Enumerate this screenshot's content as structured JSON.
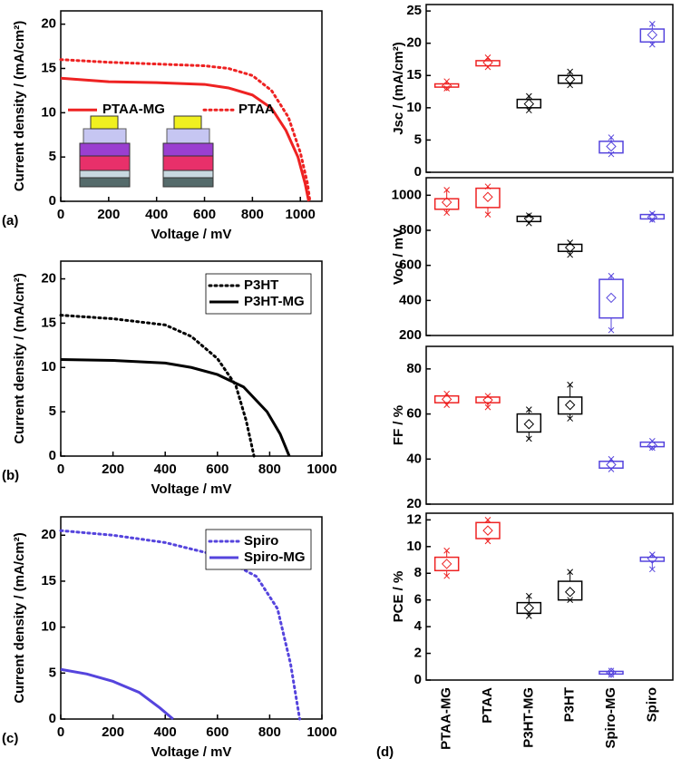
{
  "chart_data": [
    {
      "type": "line",
      "panel_label": "(a)",
      "xlabel": "Voltage / mV",
      "ylabel": "Current density / (mA/cm²)",
      "xlim": [
        0,
        1090
      ],
      "xticks": [
        0,
        200,
        400,
        600,
        800,
        1000
      ],
      "ylim": [
        0,
        21.5
      ],
      "yticks": [
        0,
        5,
        10,
        15,
        20
      ],
      "legend": "center left",
      "series": [
        {
          "name": "PTAA-MG",
          "color": "#ee2222",
          "style": "solid",
          "x": [
            0,
            200,
            400,
            600,
            700,
            800,
            880,
            940,
            990,
            1020,
            1035
          ],
          "values": [
            13.9,
            13.5,
            13.4,
            13.2,
            12.8,
            12.0,
            10.5,
            8,
            5,
            2,
            0
          ]
        },
        {
          "name": "PTAA",
          "color": "#ee2222",
          "style": "dotted",
          "x": [
            0,
            200,
            400,
            600,
            700,
            800,
            880,
            950,
            1000,
            1030,
            1040
          ],
          "values": [
            16.0,
            15.7,
            15.5,
            15.3,
            15.0,
            14.2,
            12.5,
            9.5,
            5.5,
            2,
            0
          ]
        }
      ]
    },
    {
      "type": "line",
      "panel_label": "(b)",
      "xlabel": "Voltage / mV",
      "ylabel": "Current density / (mA/cm²)",
      "xlim": [
        0,
        1000
      ],
      "xticks": [
        0,
        200,
        400,
        600,
        800,
        1000
      ],
      "ylim": [
        0,
        22
      ],
      "yticks": [
        0,
        5,
        10,
        15,
        20
      ],
      "legend": "upper right",
      "series": [
        {
          "name": "P3HT",
          "color": "#000000",
          "style": "dotted",
          "x": [
            0,
            200,
            400,
            500,
            600,
            670,
            710,
            740
          ],
          "values": [
            15.9,
            15.5,
            14.8,
            13.5,
            11,
            8,
            4,
            0
          ]
        },
        {
          "name": "P3HT-MG",
          "color": "#000000",
          "style": "solid",
          "x": [
            0,
            200,
            400,
            500,
            600,
            700,
            790,
            840,
            875
          ],
          "values": [
            10.9,
            10.8,
            10.5,
            10,
            9.2,
            7.8,
            5,
            2.5,
            0
          ]
        }
      ]
    },
    {
      "type": "line",
      "panel_label": "(c)",
      "xlabel": "Voltage / mV",
      "ylabel": "Current density / (mA/cm²)",
      "xlim": [
        0,
        1000
      ],
      "xticks": [
        0,
        200,
        400,
        600,
        800,
        1000
      ],
      "ylim": [
        0,
        22
      ],
      "yticks": [
        0,
        5,
        10,
        15,
        20
      ],
      "legend": "upper right",
      "series": [
        {
          "name": "Spiro",
          "color": "#5544dd",
          "style": "dotted",
          "x": [
            0,
            200,
            400,
            600,
            750,
            830,
            880,
            915
          ],
          "values": [
            20.5,
            20.0,
            19.2,
            17.8,
            15.5,
            12,
            6,
            0
          ]
        },
        {
          "name": "Spiro-MG",
          "color": "#5544dd",
          "style": "solid",
          "x": [
            0,
            100,
            200,
            300,
            380,
            430
          ],
          "values": [
            5.4,
            4.9,
            4.1,
            2.9,
            1.2,
            0
          ]
        }
      ]
    },
    {
      "type": "box",
      "ylabel": "Jsc / (mA/cm²)",
      "ylim": [
        0,
        26
      ],
      "yticks": [
        0,
        5,
        10,
        15,
        20,
        25
      ],
      "colors": [
        "#ee2222",
        "#ee2222",
        "#000000",
        "#000000",
        "#5544dd",
        "#5544dd"
      ],
      "boxes": [
        {
          "low": 13.0,
          "q1": 13.2,
          "mean": 13.4,
          "q3": 13.7,
          "high": 14.1
        },
        {
          "low": 16.3,
          "q1": 16.5,
          "mean": 17.0,
          "q3": 17.3,
          "high": 17.8
        },
        {
          "low": 9.6,
          "q1": 10.0,
          "mean": 10.6,
          "q3": 11.3,
          "high": 11.8
        },
        {
          "low": 13.5,
          "q1": 13.8,
          "mean": 14.4,
          "q3": 15.0,
          "high": 15.6
        },
        {
          "low": 2.8,
          "q1": 3.0,
          "mean": 4.0,
          "q3": 4.8,
          "high": 5.4
        },
        {
          "low": 19.8,
          "q1": 20.2,
          "mean": 21.3,
          "q3": 22.2,
          "high": 23.0
        }
      ]
    },
    {
      "type": "box",
      "ylabel": "Voc / mV",
      "ylim": [
        200,
        1100
      ],
      "yticks": [
        200,
        400,
        600,
        800,
        1000
      ],
      "colors": [
        "#ee2222",
        "#ee2222",
        "#000000",
        "#000000",
        "#5544dd",
        "#5544dd"
      ],
      "boxes": [
        {
          "low": 900,
          "q1": 920,
          "mean": 960,
          "q3": 980,
          "high": 1030
        },
        {
          "low": 890,
          "q1": 930,
          "mean": 990,
          "q3": 1040,
          "high": 1050
        },
        {
          "low": 840,
          "q1": 850,
          "mean": 868,
          "q3": 880,
          "high": 885
        },
        {
          "low": 660,
          "q1": 680,
          "mean": 702,
          "q3": 720,
          "high": 730
        },
        {
          "low": 230,
          "q1": 300,
          "mean": 415,
          "q3": 520,
          "high": 540
        },
        {
          "low": 860,
          "q1": 865,
          "mean": 875,
          "q3": 890,
          "high": 895
        }
      ]
    },
    {
      "type": "box",
      "ylabel": "FF / %",
      "ylim": [
        20,
        90
      ],
      "yticks": [
        20,
        40,
        60,
        80
      ],
      "colors": [
        "#ee2222",
        "#ee2222",
        "#000000",
        "#000000",
        "#5544dd",
        "#5544dd"
      ],
      "boxes": [
        {
          "low": 64,
          "q1": 65,
          "mean": 66.5,
          "q3": 68,
          "high": 69
        },
        {
          "low": 63,
          "q1": 65,
          "mean": 66.2,
          "q3": 67.5,
          "high": 68
        },
        {
          "low": 49,
          "q1": 52,
          "mean": 55.5,
          "q3": 60,
          "high": 62
        },
        {
          "low": 58,
          "q1": 60,
          "mean": 64,
          "q3": 67.5,
          "high": 73
        },
        {
          "low": 35.5,
          "q1": 36,
          "mean": 37.5,
          "q3": 39,
          "high": 40
        },
        {
          "low": 45,
          "q1": 45.5,
          "mean": 46,
          "q3": 47.5,
          "high": 48
        }
      ]
    },
    {
      "type": "box",
      "panel_label": "(d)",
      "ylabel": "PCE / %",
      "ylim": [
        0,
        12.5
      ],
      "yticks": [
        0,
        2,
        4,
        6,
        8,
        10,
        12
      ],
      "categories": [
        "PTAA-MG",
        "PTAA",
        "P3HT-MG",
        "P3HT",
        "Spiro-MG",
        "Spiro"
      ],
      "colors": [
        "#ee2222",
        "#ee2222",
        "#000000",
        "#000000",
        "#5544dd",
        "#5544dd"
      ],
      "boxes": [
        {
          "low": 7.8,
          "q1": 8.2,
          "mean": 8.7,
          "q3": 9.2,
          "high": 9.7
        },
        {
          "low": 10.4,
          "q1": 10.6,
          "mean": 11.2,
          "q3": 11.8,
          "high": 12.0
        },
        {
          "low": 4.8,
          "q1": 5.0,
          "mean": 5.4,
          "q3": 5.8,
          "high": 6.3
        },
        {
          "low": 6.0,
          "q1": 6.0,
          "mean": 6.6,
          "q3": 7.4,
          "high": 8.1
        },
        {
          "low": 0.4,
          "q1": 0.45,
          "mean": 0.55,
          "q3": 0.65,
          "high": 0.7
        },
        {
          "low": 8.3,
          "q1": 8.9,
          "mean": 9.1,
          "q3": 9.2,
          "high": 9.4
        }
      ]
    }
  ]
}
